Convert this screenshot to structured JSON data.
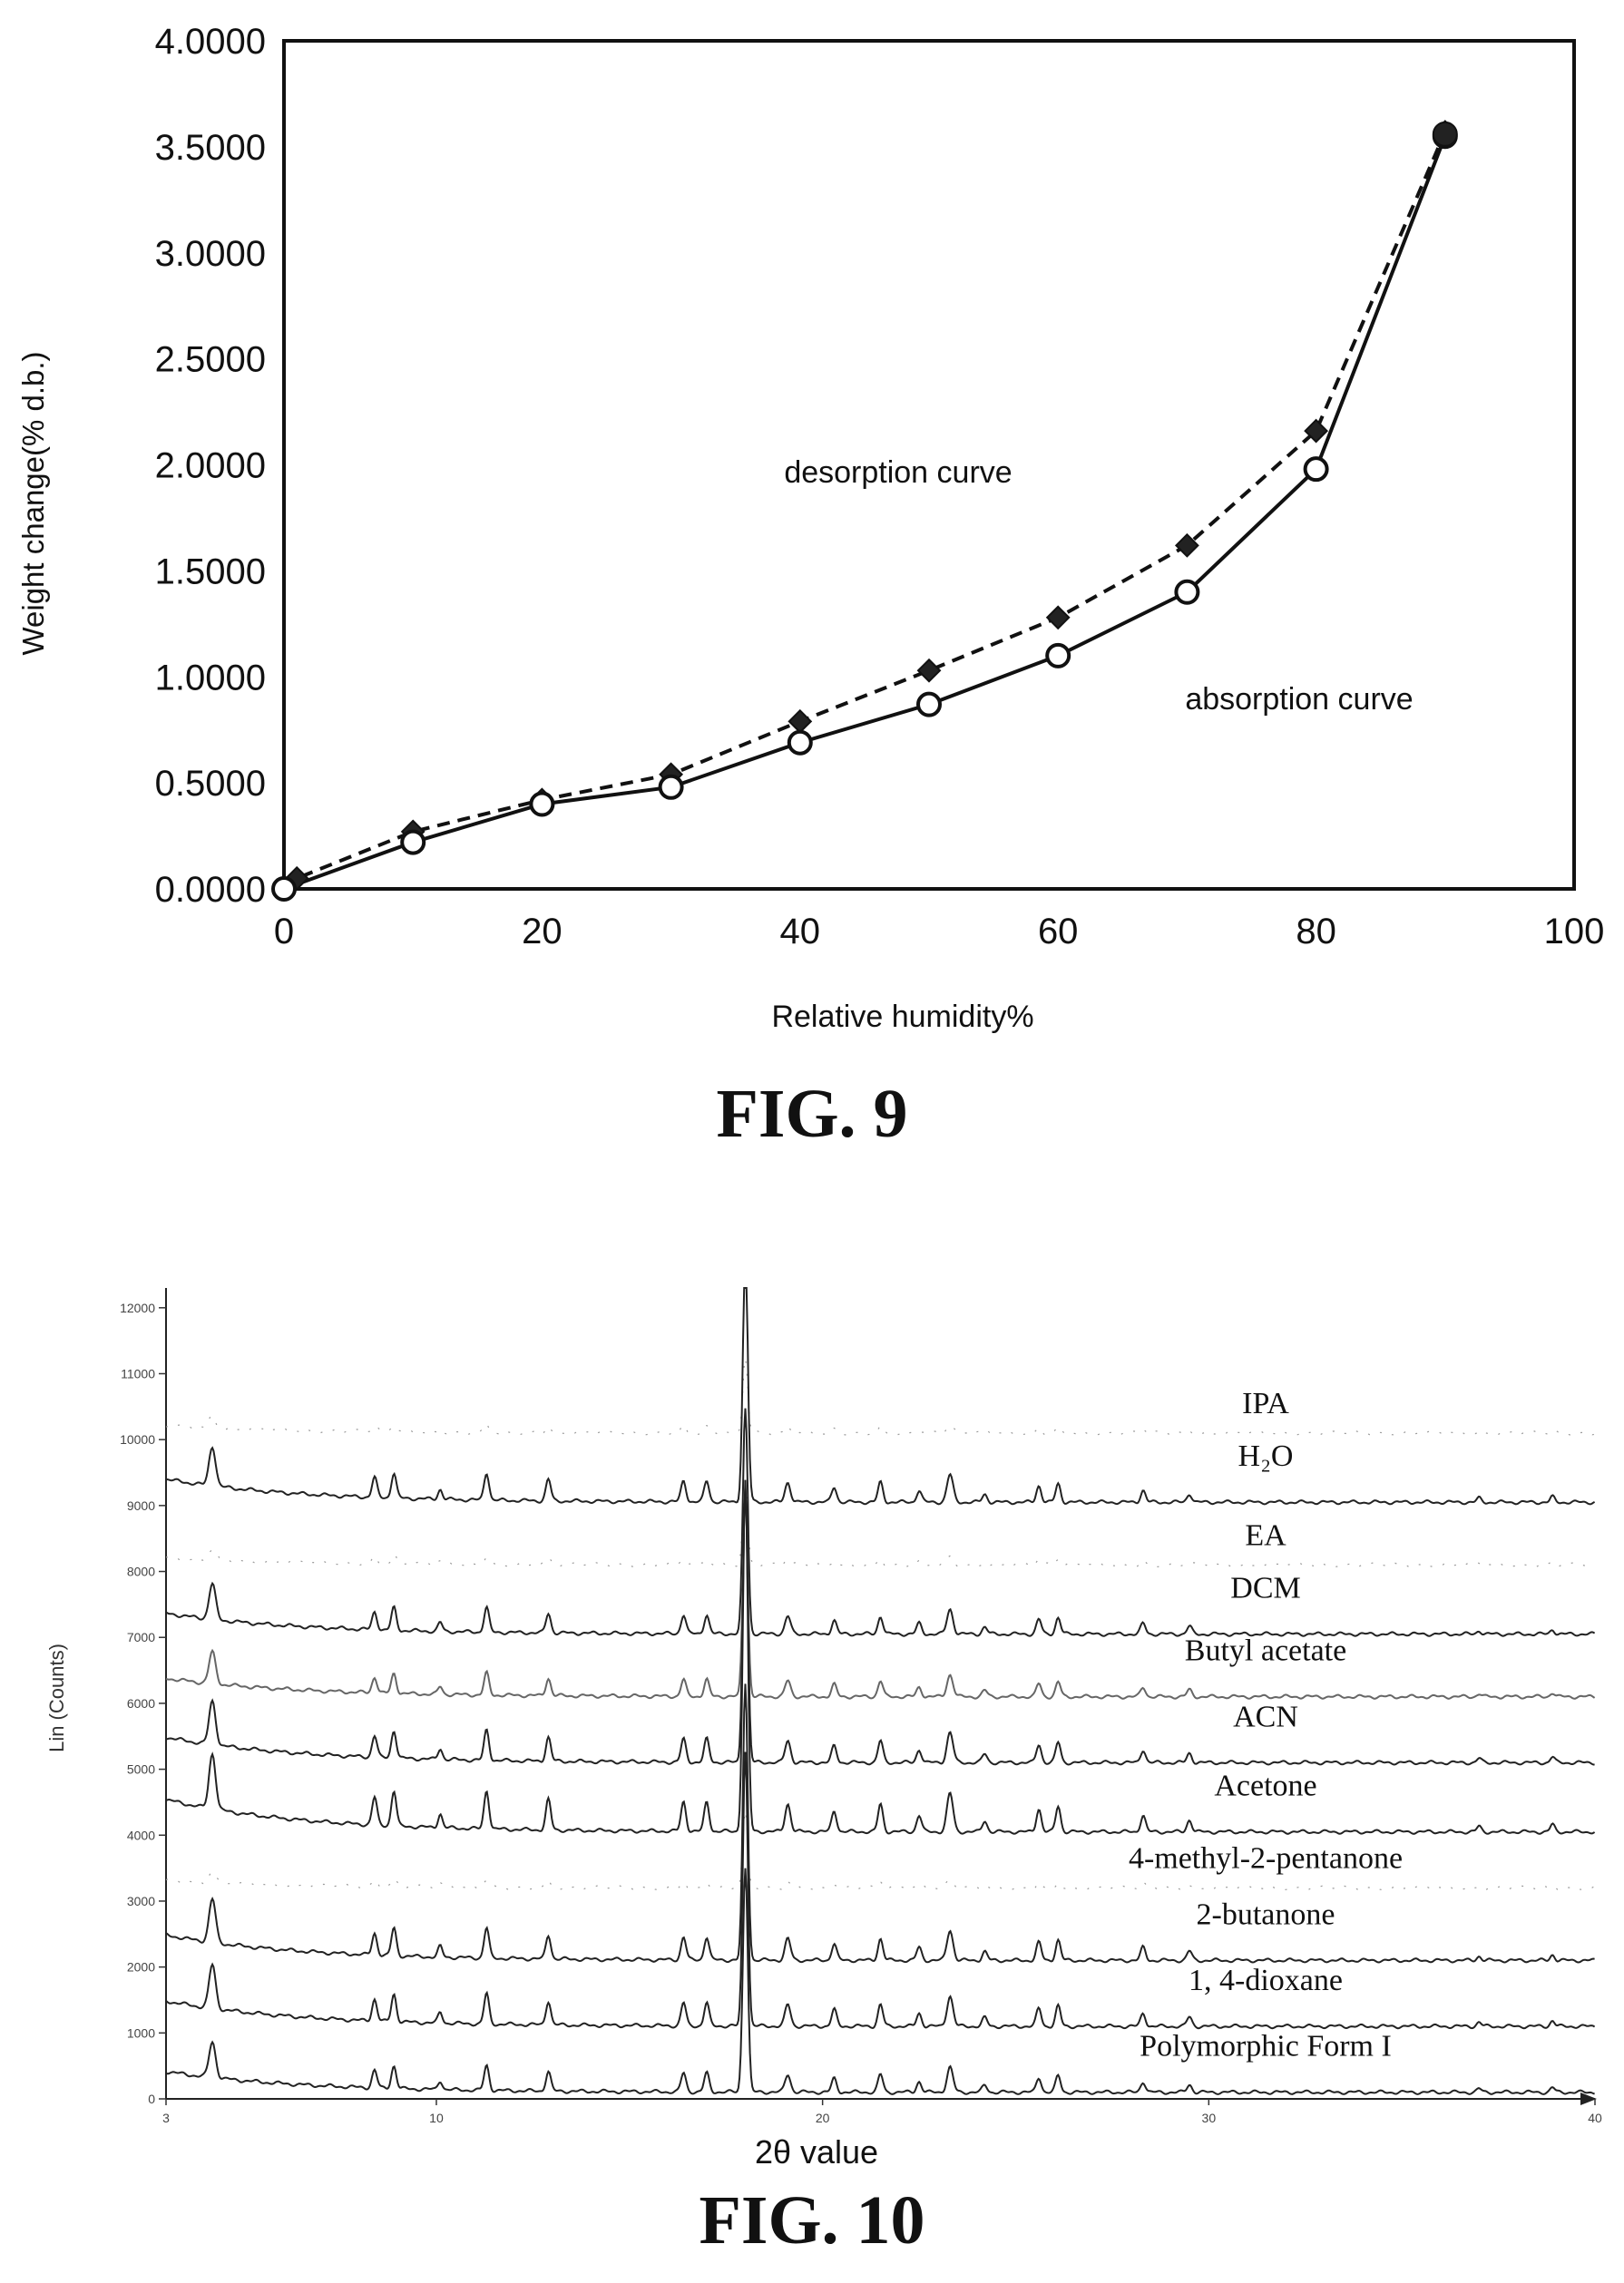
{
  "chart_data": [
    {
      "type": "line",
      "caption": "FIG. 9",
      "xlabel": "Relative humidity%",
      "ylabel": "Weight change(% d.b.)",
      "xlim": [
        0,
        100
      ],
      "ylim": [
        0,
        4
      ],
      "x_ticks": [
        "0",
        "20",
        "40",
        "60",
        "80",
        "100"
      ],
      "y_ticks": [
        "0.0000",
        "0.5000",
        "1.0000",
        "1.5000",
        "2.0000",
        "2.5000",
        "3.0000",
        "3.5000",
        "4.0000"
      ],
      "grid": false,
      "annotations": [
        "desorption curve",
        "absorption curve"
      ],
      "series": [
        {
          "marker": "open-circle",
          "line": "solid",
          "x": [
            0,
            10,
            20,
            30,
            40,
            50,
            60,
            70,
            80,
            90
          ],
          "values": [
            0.0,
            0.22,
            0.4,
            0.48,
            0.69,
            0.87,
            1.1,
            1.4,
            1.98,
            3.55
          ]
        },
        {
          "marker": "filled-diamond",
          "line": "dashed",
          "x": [
            0,
            1,
            10,
            20,
            30,
            40,
            50,
            60,
            70,
            80,
            90
          ],
          "values": [
            0.0,
            0.05,
            0.27,
            0.42,
            0.54,
            0.79,
            1.03,
            1.28,
            1.62,
            2.16,
            3.57
          ]
        }
      ]
    },
    {
      "type": "line",
      "caption": "FIG. 10",
      "xlabel": "2θ value",
      "ylabel": "Lin (Counts)",
      "xlim": [
        3,
        40
      ],
      "ylim": [
        0,
        12300
      ],
      "x_ticks": [
        "3",
        "10",
        "20",
        "30",
        "40"
      ],
      "y_ticks": [
        "0",
        "1000",
        "2000",
        "3000",
        "4000",
        "5000",
        "6000",
        "7000",
        "8000",
        "9000",
        "10000",
        "11000",
        "12000"
      ],
      "grid": false,
      "peak_positions_2theta": [
        4.2,
        8.4,
        8.9,
        10.1,
        11.3,
        12.9,
        16.4,
        17.0,
        18.0,
        19.1,
        20.3,
        21.5,
        22.5,
        23.3,
        24.2,
        25.6,
        26.1,
        28.3,
        29.5,
        37.0,
        38.9
      ],
      "series": [
        {
          "name": "IPA",
          "baseline": 10100,
          "scale": 0.3,
          "style": "faint"
        },
        {
          "name": "H₂O",
          "baseline": 9050,
          "scale": 1.0,
          "style": "solid"
        },
        {
          "name": "EA",
          "baseline": 8100,
          "scale": 0.3,
          "style": "faint"
        },
        {
          "name": "DCM",
          "baseline": 7050,
          "scale": 0.9,
          "style": "solid"
        },
        {
          "name": "Butyl acetate",
          "baseline": 6100,
          "scale": 0.8,
          "style": "grey"
        },
        {
          "name": "ACN",
          "baseline": 5100,
          "scale": 1.1,
          "style": "solid"
        },
        {
          "name": "Acetone",
          "baseline": 4050,
          "scale": 1.4,
          "style": "solid"
        },
        {
          "name": "4-methyl-2-pentanone",
          "baseline": 3200,
          "scale": 0.3,
          "style": "faint"
        },
        {
          "name": "2-butanone",
          "baseline": 2100,
          "scale": 1.1,
          "style": "solid"
        },
        {
          "name": "1, 4-dioxane",
          "baseline": 1100,
          "scale": 1.1,
          "style": "solid"
        },
        {
          "name": "Polymorphic Form I",
          "baseline": 100,
          "scale": 0.9,
          "style": "solid"
        }
      ]
    }
  ]
}
